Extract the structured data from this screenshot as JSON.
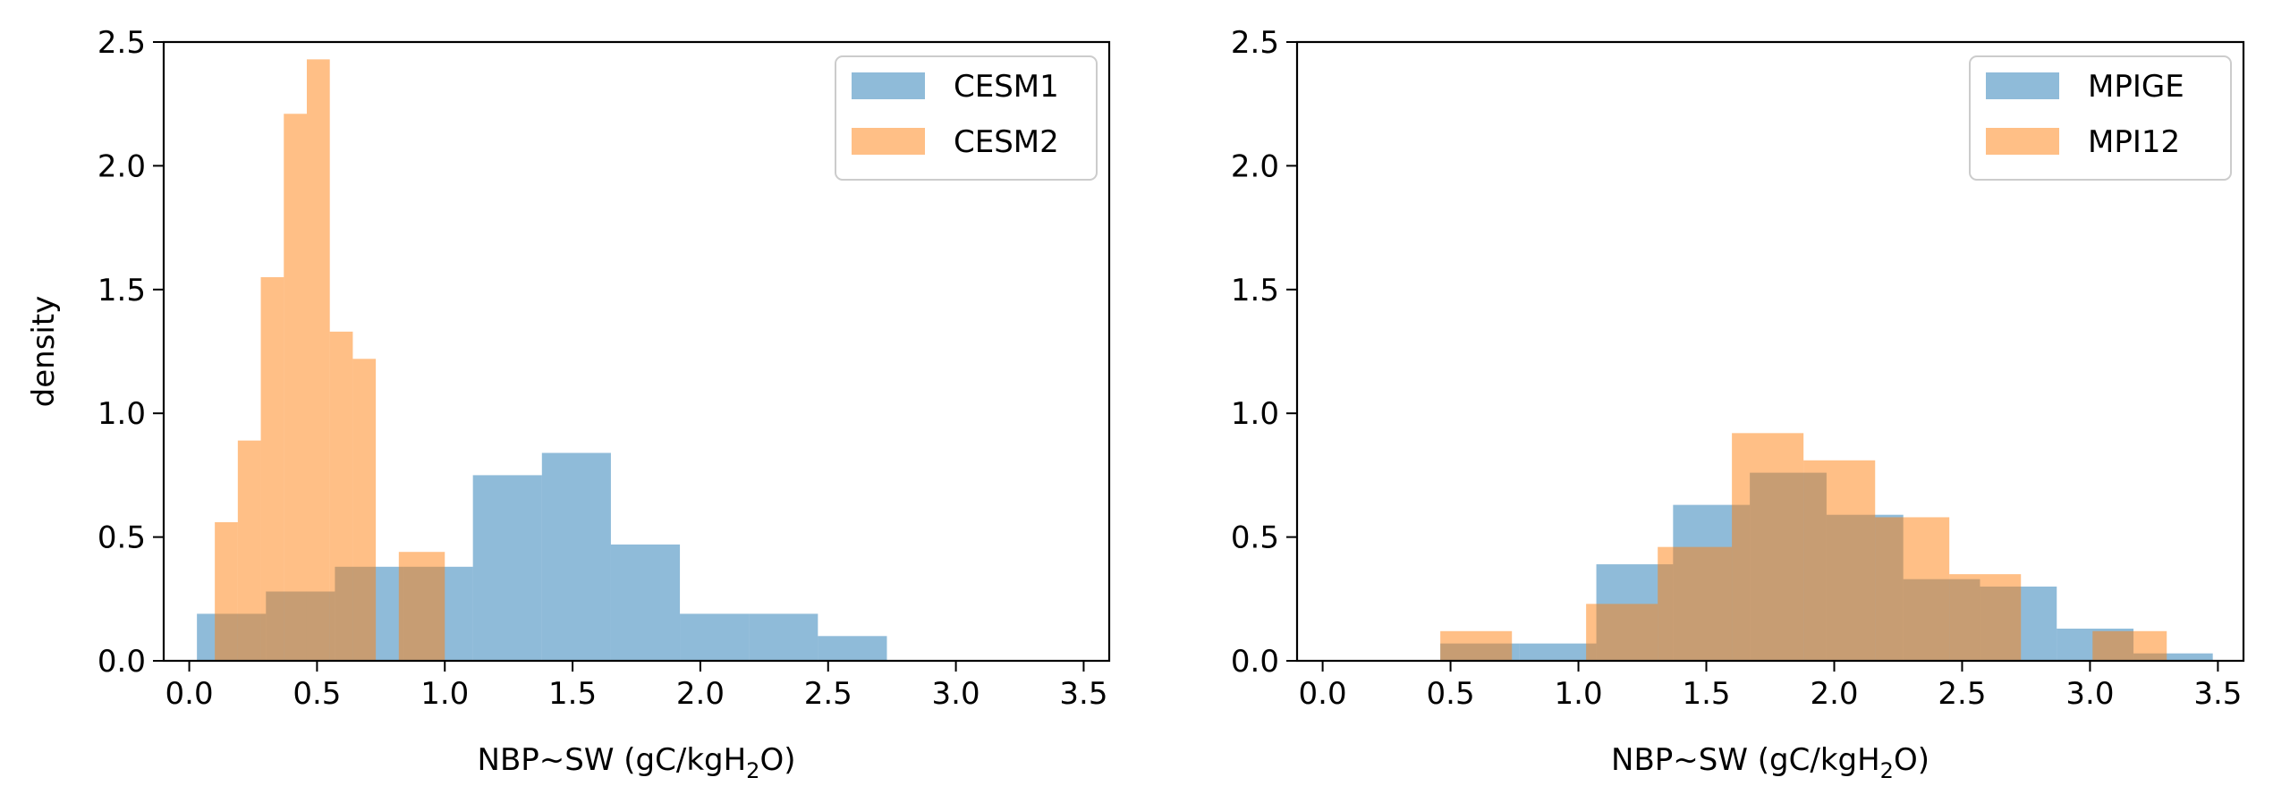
{
  "chart_data": [
    {
      "type": "histogram",
      "ylabel": "density",
      "xlabel": {
        "prefix": "NBP~SW (gC/kgH",
        "sub": "2",
        "suffix": "O)"
      },
      "xlim": [
        -0.1,
        3.6
      ],
      "ylim": [
        0,
        2.5
      ],
      "xticks": [
        "0.0",
        "0.5",
        "1.0",
        "1.5",
        "2.0",
        "2.5",
        "3.0",
        "3.5"
      ],
      "yticks": [
        "0.0",
        "0.5",
        "1.0",
        "1.5",
        "2.0",
        "2.5"
      ],
      "legend_position": "top-right",
      "series": [
        {
          "name": "CESM1",
          "color": "#1f77b4",
          "bins": [
            {
              "x0": 0.03,
              "x1": 0.3,
              "y": 0.19
            },
            {
              "x0": 0.3,
              "x1": 0.57,
              "y": 0.28
            },
            {
              "x0": 0.57,
              "x1": 0.84,
              "y": 0.38
            },
            {
              "x0": 0.84,
              "x1": 1.11,
              "y": 0.38
            },
            {
              "x0": 1.11,
              "x1": 1.38,
              "y": 0.75
            },
            {
              "x0": 1.38,
              "x1": 1.65,
              "y": 0.84
            },
            {
              "x0": 1.65,
              "x1": 1.92,
              "y": 0.47
            },
            {
              "x0": 1.92,
              "x1": 2.19,
              "y": 0.19
            },
            {
              "x0": 2.19,
              "x1": 2.46,
              "y": 0.19
            },
            {
              "x0": 2.46,
              "x1": 2.73,
              "y": 0.1
            }
          ]
        },
        {
          "name": "CESM2",
          "color": "#ff7f0e",
          "bins": [
            {
              "x0": 0.1,
              "x1": 0.19,
              "y": 0.56
            },
            {
              "x0": 0.19,
              "x1": 0.28,
              "y": 0.89
            },
            {
              "x0": 0.28,
              "x1": 0.37,
              "y": 1.55
            },
            {
              "x0": 0.37,
              "x1": 0.46,
              "y": 2.21
            },
            {
              "x0": 0.46,
              "x1": 0.55,
              "y": 2.43
            },
            {
              "x0": 0.55,
              "x1": 0.64,
              "y": 1.33
            },
            {
              "x0": 0.64,
              "x1": 0.73,
              "y": 1.22
            },
            {
              "x0": 0.73,
              "x1": 0.82,
              "y": 0.0
            },
            {
              "x0": 0.82,
              "x1": 1.0,
              "y": 0.44
            }
          ]
        }
      ]
    },
    {
      "type": "histogram",
      "ylabel": "",
      "xlabel": {
        "prefix": "NBP~SW (gC/kgH",
        "sub": "2",
        "suffix": "O)"
      },
      "xlim": [
        -0.1,
        3.6
      ],
      "ylim": [
        0,
        2.5
      ],
      "xticks": [
        "0.0",
        "0.5",
        "1.0",
        "1.5",
        "2.0",
        "2.5",
        "3.0",
        "3.5"
      ],
      "yticks": [
        "0.0",
        "0.5",
        "1.0",
        "1.5",
        "2.0",
        "2.5"
      ],
      "legend_position": "top-right",
      "series": [
        {
          "name": "MPIGE",
          "color": "#1f77b4",
          "bins": [
            {
              "x0": 0.46,
              "x1": 0.77,
              "y": 0.07
            },
            {
              "x0": 0.77,
              "x1": 1.07,
              "y": 0.07
            },
            {
              "x0": 1.07,
              "x1": 1.37,
              "y": 0.39
            },
            {
              "x0": 1.37,
              "x1": 1.67,
              "y": 0.63
            },
            {
              "x0": 1.67,
              "x1": 1.97,
              "y": 0.76
            },
            {
              "x0": 1.97,
              "x1": 2.27,
              "y": 0.59
            },
            {
              "x0": 2.27,
              "x1": 2.57,
              "y": 0.33
            },
            {
              "x0": 2.57,
              "x1": 2.87,
              "y": 0.3
            },
            {
              "x0": 2.87,
              "x1": 3.17,
              "y": 0.13
            },
            {
              "x0": 3.17,
              "x1": 3.48,
              "y": 0.03
            }
          ]
        },
        {
          "name": "MPI12",
          "color": "#ff7f0e",
          "bins": [
            {
              "x0": 0.46,
              "x1": 0.74,
              "y": 0.12
            },
            {
              "x0": 0.74,
              "x1": 1.03,
              "y": 0.0
            },
            {
              "x0": 1.03,
              "x1": 1.31,
              "y": 0.23
            },
            {
              "x0": 1.31,
              "x1": 1.6,
              "y": 0.46
            },
            {
              "x0": 1.6,
              "x1": 1.88,
              "y": 0.92
            },
            {
              "x0": 1.88,
              "x1": 2.16,
              "y": 0.81
            },
            {
              "x0": 2.16,
              "x1": 2.45,
              "y": 0.58
            },
            {
              "x0": 2.45,
              "x1": 2.73,
              "y": 0.35
            },
            {
              "x0": 2.73,
              "x1": 3.01,
              "y": 0.0
            },
            {
              "x0": 3.01,
              "x1": 3.3,
              "y": 0.12
            }
          ]
        }
      ]
    }
  ]
}
